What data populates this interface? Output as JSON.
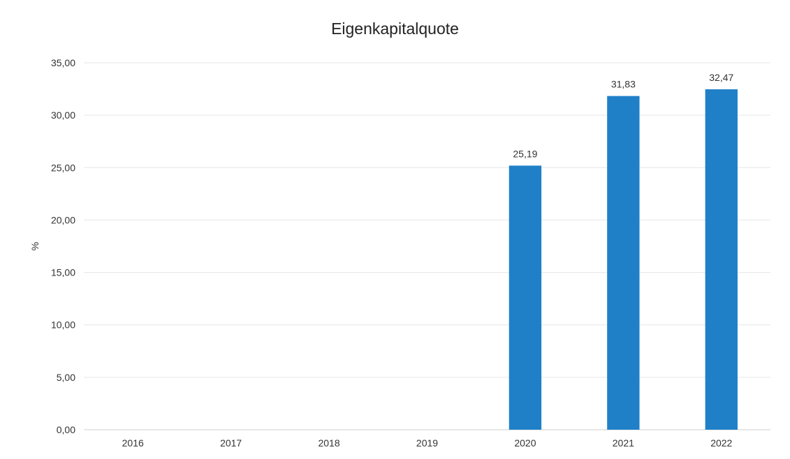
{
  "chart_data": {
    "type": "bar",
    "title": "Eigenkapitalquote",
    "xlabel": "",
    "ylabel": "%",
    "categories": [
      "2016",
      "2017",
      "2018",
      "2019",
      "2020",
      "2021",
      "2022"
    ],
    "values": [
      null,
      null,
      null,
      null,
      25.19,
      31.83,
      32.47
    ],
    "data_labels": [
      "",
      "",
      "",
      "",
      "25,19",
      "31,83",
      "32,47"
    ],
    "ylim": [
      0,
      35
    ],
    "yticks": [
      0,
      5,
      10,
      15,
      20,
      25,
      30,
      35
    ],
    "ytick_labels": [
      "0,00",
      "5,00",
      "10,00",
      "15,00",
      "20,00",
      "25,00",
      "30,00",
      "35,00"
    ],
    "grid": "horizontal",
    "legend": "none",
    "bar_color": "#1f80c8",
    "grid_color": "#e6e6e6"
  }
}
